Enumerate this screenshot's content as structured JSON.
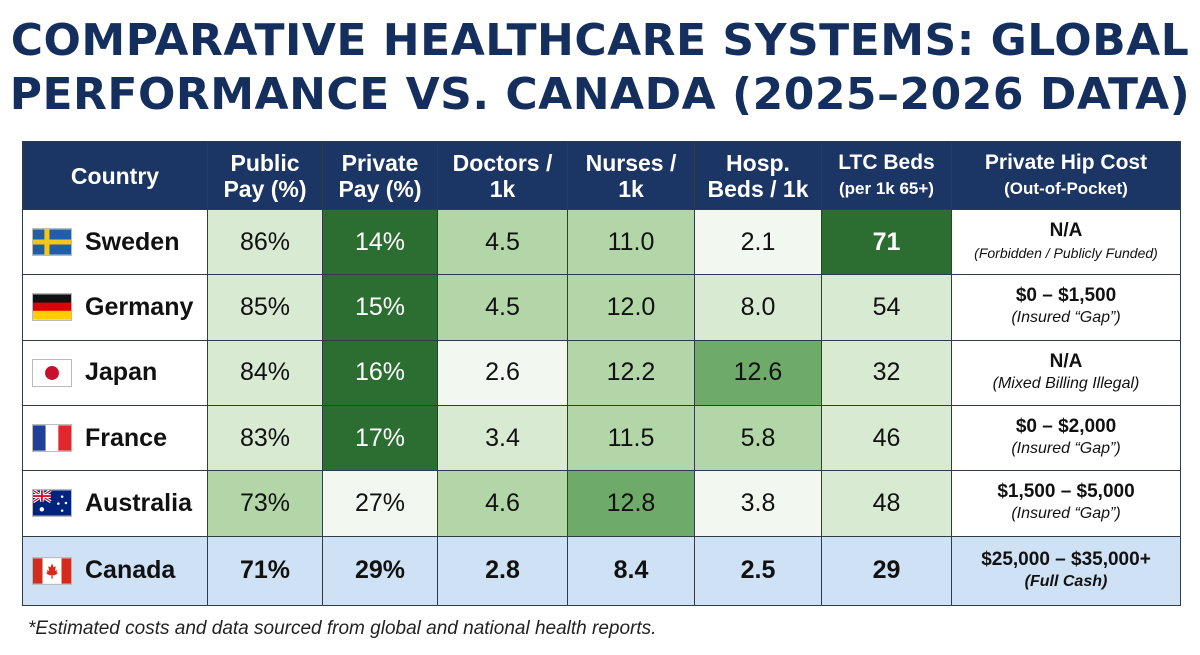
{
  "title_lines": [
    "COMPARATIVE HEALTHCARE SYSTEMS: GLOBAL",
    "PERFORMANCE VS. CANADA (2025–2026 DATA)"
  ],
  "headers": {
    "country": "Country",
    "public_1": "Public",
    "public_2": "Pay (%)",
    "private_1": "Private",
    "private_2": "Pay (%)",
    "doctors_1": "Doctors /",
    "doctors_2": "1k",
    "nurses_1": "Nurses /",
    "nurses_2": "1k",
    "beds_1": "Hosp.",
    "beds_2": "Beds / 1k",
    "ltc_1": "LTC Beds",
    "ltc_2": "(per 1k 65+)",
    "cost_1": "Private Hip Cost",
    "cost_2": "(Out-of-Pocket)"
  },
  "shade_colors": {
    "1": "#f2f8ef",
    "2": "#d8ebd2",
    "3": "#b2d6a8",
    "4": "#6eaa68",
    "5": "#2c6e31"
  },
  "chart_data": {
    "type": "table",
    "title": "COMPARATIVE HEALTHCARE SYSTEMS: GLOBAL PERFORMANCE VS. CANADA (2025–2026 DATA)",
    "columns": [
      "Country",
      "Public Pay (%)",
      "Private Pay (%)",
      "Doctors / 1k",
      "Nurses / 1k",
      "Hosp. Beds / 1k",
      "LTC Beds (per 1k 65+)",
      "Private Hip Cost (Out-of-Pocket)"
    ],
    "rows": [
      {
        "country": "Sweden",
        "flag": "sweden-flag",
        "public": "86%",
        "private": "14%",
        "doctors": "4.5",
        "nurses": "11.0",
        "beds": "2.1",
        "ltc": "71",
        "cost": "N/A",
        "cost_note": "(Forbidden / Publicly Funded)",
        "shades": [
          2,
          5,
          3,
          3,
          1,
          5
        ]
      },
      {
        "country": "Germany",
        "flag": "germany-flag",
        "public": "85%",
        "private": "15%",
        "doctors": "4.5",
        "nurses": "12.0",
        "beds": "8.0",
        "ltc": "54",
        "cost": "$0 – $1,500",
        "cost_note": "(Insured “Gap”)",
        "shades": [
          2,
          5,
          3,
          3,
          2,
          2
        ]
      },
      {
        "country": "Japan",
        "flag": "japan-flag",
        "public": "84%",
        "private": "16%",
        "doctors": "2.6",
        "nurses": "12.2",
        "beds": "12.6",
        "ltc": "32",
        "cost": "N/A",
        "cost_note": "(Mixed Billing Illegal)",
        "shades": [
          2,
          5,
          1,
          3,
          4,
          2
        ]
      },
      {
        "country": "France",
        "flag": "france-flag",
        "public": "83%",
        "private": "17%",
        "doctors": "3.4",
        "nurses": "11.5",
        "beds": "5.8",
        "ltc": "46",
        "cost": "$0 – $2,000",
        "cost_note": "(Insured “Gap”)",
        "shades": [
          2,
          5,
          2,
          3,
          3,
          2
        ]
      },
      {
        "country": "Australia",
        "flag": "australia-flag",
        "public": "73%",
        "private": "27%",
        "doctors": "4.6",
        "nurses": "12.8",
        "beds": "3.8",
        "ltc": "48",
        "cost": "$1,500 – $5,000",
        "cost_note": "(Insured “Gap”)",
        "shades": [
          3,
          1,
          3,
          4,
          1,
          2
        ]
      },
      {
        "country": "Canada",
        "flag": "canada-flag",
        "public": "71%",
        "private": "29%",
        "doctors": "2.8",
        "nurses": "8.4",
        "beds": "2.5",
        "ltc": "29",
        "cost": "$25,000 – $35,000+",
        "cost_note": "(Full Cash)",
        "shades": [
          0,
          0,
          0,
          0,
          0,
          0
        ]
      }
    ]
  },
  "footnote": "*Estimated costs and data sourced from global and national health reports."
}
